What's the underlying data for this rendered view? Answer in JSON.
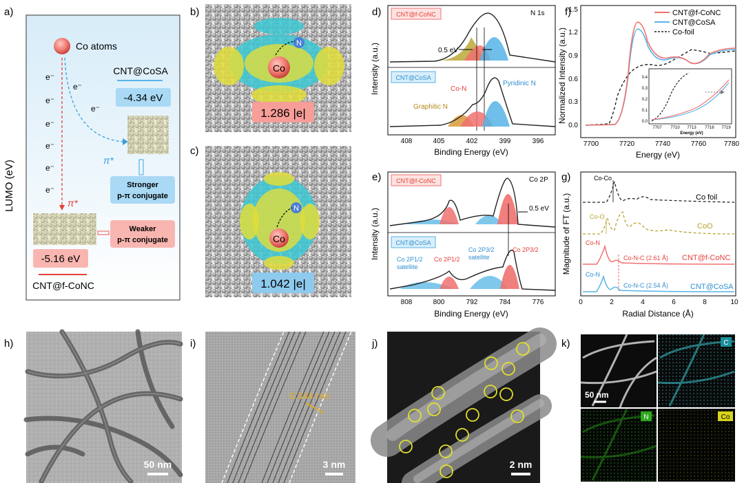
{
  "panels": {
    "a": "a)",
    "b": "b)",
    "c": "c)",
    "d": "d)",
    "e": "e)",
    "f": "f)",
    "g": "g)",
    "h": "h)",
    "i": "i)",
    "j": "j)",
    "k": "k)"
  },
  "a": {
    "ylabel": "LUMO (eV)",
    "co_atoms": "Co atoms",
    "electron": "e⁻",
    "cosa_name": "CNT@CoSA",
    "cosa_energy": "-4.34 eV",
    "conc_name": "CNT@f-CoNC",
    "conc_energy": "-5.16 eV",
    "pi_star": "π*",
    "stronger_1": "Stronger",
    "stronger_2": "p-π conjugate",
    "weaker_1": "Weaker",
    "weaker_2": "p-π conjugate"
  },
  "b": {
    "charge": "1.286 |e|",
    "atom_n": "N",
    "atom_co": "Co"
  },
  "c": {
    "charge": "1.042 |e|",
    "atom_n": "N",
    "atom_co": "Co"
  },
  "d": {
    "title": "N 1s",
    "label_top": "CNT@f-CoNC",
    "label_bottom": "CNT@CoSA",
    "shift": "0.5 eV",
    "peak_con": "Co-N",
    "peak_pyridinic": "Pyridinic N",
    "peak_graphitic": "Graphitic N",
    "ylabel": "Intensity (a.u.)",
    "xlabel": "Binding Energy (eV)",
    "xticks": [
      "408",
      "405",
      "402",
      "399",
      "396"
    ]
  },
  "e": {
    "title": "Co 2P",
    "label_top": "CNT@f-CoNC",
    "label_bottom": "CNT@CoSA",
    "shift": "0.5 eV",
    "sat12_a": "Co 2P1/2",
    "sat12_b": "satellite",
    "p12": "Co 2P1/2",
    "sat32_a": "Co 2P3/2",
    "sat32_b": "satellite",
    "p32": "Co 2P3/2",
    "ylabel": "Intensity (a.u.)",
    "xlabel": "Binding Energy (eV)",
    "xticks": [
      "808",
      "800",
      "792",
      "784",
      "776"
    ]
  },
  "f": {
    "ylabel": "Normalized Intensity (a.u.)",
    "xlabel": "Energy (eV)",
    "xticks": [
      "7700",
      "7720",
      "7740",
      "7760",
      "7780"
    ],
    "yticks": [
      "0.0",
      "0.3",
      "0.6",
      "0.9",
      "1.2",
      "1.5"
    ],
    "legend": [
      "CNT@f-CoNC",
      "CNT@CoSA",
      "Co-foil"
    ],
    "inset_xlabel": "Energy (eV)",
    "inset_xticks": [
      "7707",
      "7710",
      "7713",
      "7716",
      "7719"
    ],
    "inset_yticks": [
      "0.0",
      "0.1",
      "0.2",
      "0.3",
      "0.4"
    ]
  },
  "g": {
    "ylabel": "Magnitude of  FT (a.u.)",
    "xlabel": "Radial Distance (Å)",
    "xticks": [
      "0",
      "2",
      "4",
      "6",
      "8",
      "10"
    ],
    "cocolabel": "Co-Co",
    "cofoil": "Co foil",
    "coolabel": "Co-O",
    "coo": "CoO",
    "conlabel1": "Co-N",
    "concnc1": "Co-N-C (2.61 Å)",
    "conc": "CNT@f-CoNC",
    "conlabel2": "Co-N",
    "concnc2": "Co-N-C (2.54 Å)",
    "cosa": "CNT@CoSA"
  },
  "h": {
    "scale": "50 nm"
  },
  "i": {
    "scale": "3 nm",
    "spacing": "0.344 nm"
  },
  "j": {
    "scale": "2 nm"
  },
  "k": {
    "scale": "50 nm",
    "c": "C",
    "n": "N",
    "co": "Co"
  },
  "colors": {
    "red": "#f0716f",
    "blue": "#56b4e6",
    "olive": "#b5a22a",
    "yellow": "#e8e34a",
    "cyan": "#38c5cf"
  }
}
